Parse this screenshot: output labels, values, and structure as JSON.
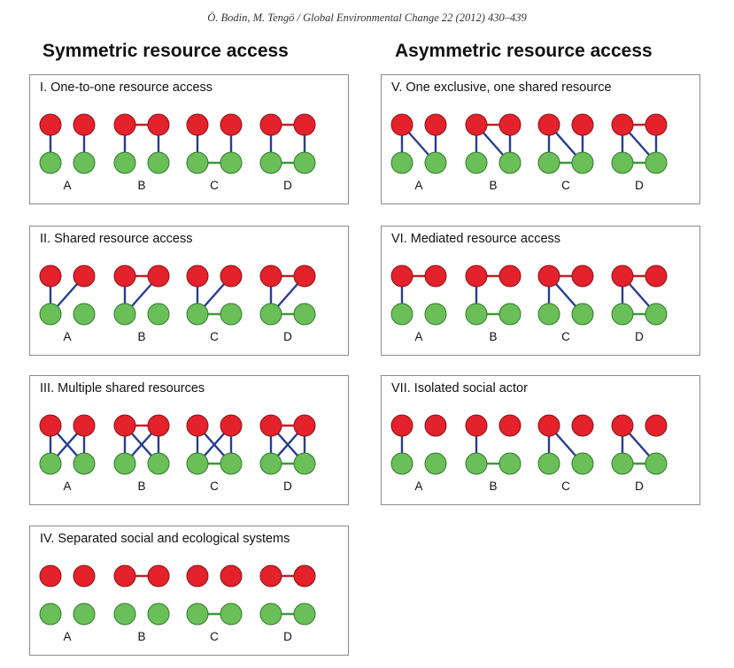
{
  "header": "Ö. Bodin, M. Tengö / Global Environmental Change 22 (2012) 430–439",
  "columns": {
    "symmetric": "Symmetric resource access",
    "asymmetric": "Asymmetric resource access"
  },
  "colors": {
    "social_node": "#e3222c",
    "social_node_stroke": "#8b1115",
    "eco_node": "#6bbf59",
    "eco_node_stroke": "#2f7a2b",
    "social_social_tie": "#c22026",
    "social_eco_tie": "#283e8e",
    "eco_eco_tie": "#3a9a3a",
    "panel_border": "#8a8a8a"
  },
  "panels": [
    {
      "id": "I",
      "title": "I. One-to-one resource access",
      "motifs": [
        {
          "label": "A",
          "ss": false,
          "ee": false,
          "se": [
            [
              0,
              0
            ],
            [
              1,
              1
            ]
          ]
        },
        {
          "label": "B",
          "ss": true,
          "ee": false,
          "se": [
            [
              0,
              0
            ],
            [
              1,
              1
            ]
          ]
        },
        {
          "label": "C",
          "ss": false,
          "ee": true,
          "se": [
            [
              0,
              0
            ],
            [
              1,
              1
            ]
          ]
        },
        {
          "label": "D",
          "ss": true,
          "ee": true,
          "se": [
            [
              0,
              0
            ],
            [
              1,
              1
            ]
          ]
        }
      ]
    },
    {
      "id": "II",
      "title": "II. Shared resource access",
      "motifs": [
        {
          "label": "A",
          "ss": false,
          "ee": false,
          "se": [
            [
              0,
              0
            ],
            [
              1,
              0
            ]
          ]
        },
        {
          "label": "B",
          "ss": true,
          "ee": false,
          "se": [
            [
              0,
              0
            ],
            [
              1,
              0
            ]
          ]
        },
        {
          "label": "C",
          "ss": false,
          "ee": true,
          "se": [
            [
              0,
              0
            ],
            [
              1,
              0
            ]
          ]
        },
        {
          "label": "D",
          "ss": true,
          "ee": true,
          "se": [
            [
              0,
              0
            ],
            [
              1,
              0
            ]
          ]
        }
      ]
    },
    {
      "id": "III",
      "title": "III. Multiple shared resources",
      "motifs": [
        {
          "label": "A",
          "ss": false,
          "ee": false,
          "se": [
            [
              0,
              0
            ],
            [
              0,
              1
            ],
            [
              1,
              0
            ],
            [
              1,
              1
            ]
          ]
        },
        {
          "label": "B",
          "ss": true,
          "ee": false,
          "se": [
            [
              0,
              0
            ],
            [
              0,
              1
            ],
            [
              1,
              0
            ],
            [
              1,
              1
            ]
          ]
        },
        {
          "label": "C",
          "ss": false,
          "ee": true,
          "se": [
            [
              0,
              0
            ],
            [
              0,
              1
            ],
            [
              1,
              0
            ],
            [
              1,
              1
            ]
          ]
        },
        {
          "label": "D",
          "ss": true,
          "ee": true,
          "se": [
            [
              0,
              0
            ],
            [
              0,
              1
            ],
            [
              1,
              0
            ],
            [
              1,
              1
            ]
          ]
        }
      ]
    },
    {
      "id": "IV",
      "title": "IV. Separated social and ecological systems",
      "motifs": [
        {
          "label": "A",
          "ss": false,
          "ee": false,
          "se": []
        },
        {
          "label": "B",
          "ss": true,
          "ee": false,
          "se": []
        },
        {
          "label": "C",
          "ss": false,
          "ee": true,
          "se": []
        },
        {
          "label": "D",
          "ss": true,
          "ee": true,
          "se": []
        }
      ]
    },
    {
      "id": "V",
      "title": "V. One exclusive, one shared resource",
      "motifs": [
        {
          "label": "A",
          "ss": false,
          "ee": false,
          "se": [
            [
              0,
              0
            ],
            [
              0,
              1
            ],
            [
              1,
              1
            ]
          ]
        },
        {
          "label": "B",
          "ss": true,
          "ee": false,
          "se": [
            [
              0,
              0
            ],
            [
              0,
              1
            ],
            [
              1,
              1
            ]
          ]
        },
        {
          "label": "C",
          "ss": false,
          "ee": true,
          "se": [
            [
              0,
              0
            ],
            [
              0,
              1
            ],
            [
              1,
              1
            ]
          ]
        },
        {
          "label": "D",
          "ss": true,
          "ee": true,
          "se": [
            [
              0,
              0
            ],
            [
              0,
              1
            ],
            [
              1,
              1
            ]
          ]
        }
      ]
    },
    {
      "id": "VI",
      "title": "VI. Mediated resource access",
      "motifs": [
        {
          "label": "A",
          "ss": true,
          "ee": false,
          "se": [
            [
              0,
              0
            ]
          ]
        },
        {
          "label": "B",
          "ss": true,
          "ee": true,
          "se": [
            [
              0,
              0
            ]
          ]
        },
        {
          "label": "C",
          "ss": true,
          "ee": false,
          "se": [
            [
              0,
              0
            ],
            [
              0,
              1
            ]
          ]
        },
        {
          "label": "D",
          "ss": true,
          "ee": true,
          "se": [
            [
              0,
              0
            ],
            [
              0,
              1
            ]
          ]
        }
      ]
    },
    {
      "id": "VII",
      "title": "VII. Isolated social actor",
      "motifs": [
        {
          "label": "A",
          "ss": false,
          "ee": false,
          "se": [
            [
              0,
              0
            ]
          ]
        },
        {
          "label": "B",
          "ss": false,
          "ee": true,
          "se": [
            [
              0,
              0
            ]
          ]
        },
        {
          "label": "C",
          "ss": false,
          "ee": false,
          "se": [
            [
              0,
              0
            ],
            [
              0,
              1
            ]
          ]
        },
        {
          "label": "D",
          "ss": false,
          "ee": true,
          "se": [
            [
              0,
              0
            ],
            [
              0,
              1
            ]
          ]
        }
      ]
    }
  ]
}
